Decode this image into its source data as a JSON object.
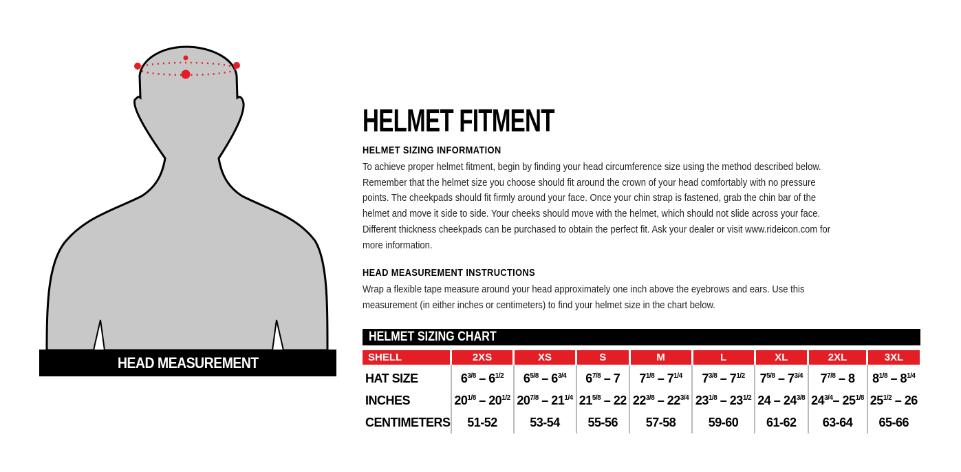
{
  "figure": {
    "caption": "HEAD MEASUREMENT",
    "silhouette_color": "#c8c8c8",
    "measure_color": "#e31e24"
  },
  "title": "HELMET FITMENT",
  "sections": [
    {
      "heading": "HELMET SIZING INFORMATION",
      "body": "To achieve proper helmet fitment, begin by finding your head circumference size using the method described below. Remember that the helmet size you choose should fit around the crown of your head comfortably with no pressure points. The cheekpads should fit firmly around your face. Once your chin strap is fastened, grab the chin bar of the helmet and move it side to side. Your cheeks should move with the helmet, which should not slide across your face. Different thickness cheekpads can be purchased to obtain the perfect fit. Ask your dealer or visit www.rideicon.com for more information."
    },
    {
      "heading": "HEAD MEASUREMENT INSTRUCTIONS",
      "body": "Wrap a flexible tape measure around your head approximately one inch above the eyebrows and ears. Use this measurement (in either inches or centimeters) to find your helmet size in the chart below."
    }
  ],
  "chart": {
    "title": "HELMET SIZING CHART",
    "header_color": "#e31e24",
    "columns": [
      "SHELL",
      "2XS",
      "XS",
      "S",
      "M",
      "L",
      "XL",
      "2XL",
      "3XL"
    ],
    "rows": [
      {
        "label": "HAT SIZE",
        "cells": [
          [
            "6",
            "3/8",
            " – 6",
            "1/2"
          ],
          [
            "6",
            "5/8",
            " – 6",
            "3/4"
          ],
          [
            "6",
            "7/8",
            " – 7"
          ],
          [
            "7",
            "1/8",
            " – 7",
            "1/4"
          ],
          [
            "7",
            "3/8",
            " – 7",
            "1/2"
          ],
          [
            "7",
            "5/8",
            " – 7",
            "3/4"
          ],
          [
            "7",
            "7/8",
            " – 8"
          ],
          [
            "8",
            "1/8",
            " – 8",
            "1/4"
          ]
        ]
      },
      {
        "label": "INCHES",
        "cells": [
          [
            "20",
            "1/8",
            " – 20",
            "1/2"
          ],
          [
            "20",
            "7/8",
            " – 21",
            "1/4"
          ],
          [
            "21",
            "5/8",
            " – 22"
          ],
          [
            "22",
            "3/8",
            " – 22",
            "3/4"
          ],
          [
            "23",
            "1/8",
            " – 23",
            "1/2"
          ],
          [
            "24 – 24",
            "3/8"
          ],
          [
            "24",
            "3/4",
            "– 25",
            "1/8"
          ],
          [
            "25",
            "1/2",
            " – 26"
          ]
        ]
      },
      {
        "label": "CENTIMETERS",
        "cells": [
          [
            "51-52"
          ],
          [
            "53-54"
          ],
          [
            "55-56"
          ],
          [
            "57-58"
          ],
          [
            "59-60"
          ],
          [
            "61-62"
          ],
          [
            "63-64"
          ],
          [
            "65-66"
          ]
        ]
      }
    ]
  }
}
